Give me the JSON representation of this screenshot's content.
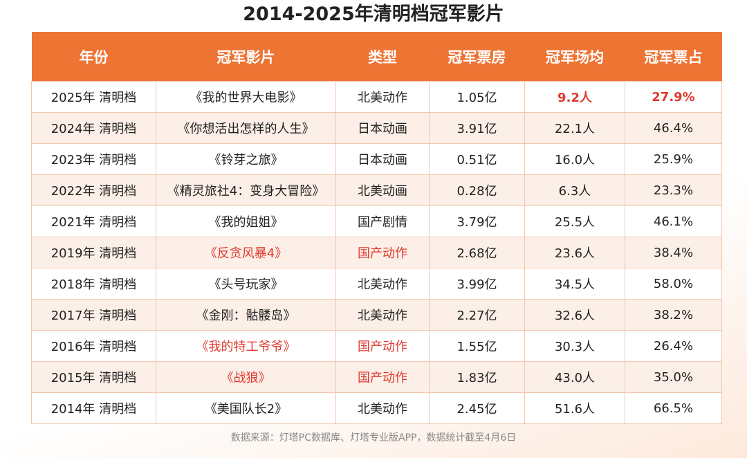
{
  "title": "2014-2025年清明档冠军影片",
  "table": {
    "header": [
      "年份",
      "冠军影片",
      "类型",
      "冠军票房",
      "冠军场均",
      "冠军票占"
    ],
    "rows": [
      [
        "2025年 清明档",
        "《我的世界大电影》",
        "北美动作",
        "1.05亿",
        "9.2人",
        "27.9%"
      ],
      [
        "2024年 清明档",
        "《你想活出怎样的人生》",
        "日本动画",
        "3.91亿",
        "22.1人",
        "46.4%"
      ],
      [
        "2023年 清明档",
        "《铃芽之旅》",
        "日本动画",
        "0.51亿",
        "16.0人",
        "25.9%"
      ],
      [
        "2022年 清明档",
        "《精灵旅社4：变身大冒险》",
        "北美动画",
        "0.28亿",
        "6.3人",
        "23.3%"
      ],
      [
        "2021年 清明档",
        "《我的姐姐》",
        "国产剧情",
        "3.79亿",
        "25.5人",
        "46.1%"
      ],
      [
        "2019年 清明档",
        "《反贪风暴4》",
        "国产动作",
        "2.68亿",
        "23.6人",
        "38.4%"
      ],
      [
        "2018年 清明档",
        "《头号玩家》",
        "北美动作",
        "3.99亿",
        "34.5人",
        "58.0%"
      ],
      [
        "2017年 清明档",
        "《金刚：骷髅岛》",
        "北美动作",
        "2.27亿",
        "32.6人",
        "38.2%"
      ],
      [
        "2016年 清明档",
        "《我的特工爷爷》",
        "国产动作",
        "1.55亿",
        "30.3人",
        "26.4%"
      ],
      [
        "2015年 清明档",
        "《战狼》",
        "国产动作",
        "1.83亿",
        "43.0人",
        "35.0%"
      ],
      [
        "2014年 清明档",
        "《美国队长2》",
        "北美动作",
        "2.45亿",
        "51.6人",
        "66.5%"
      ]
    ]
  },
  "footnote": "数据来源：灯塔PC数据库、灯塔专业版APP，数据统计截至4月6日"
}
